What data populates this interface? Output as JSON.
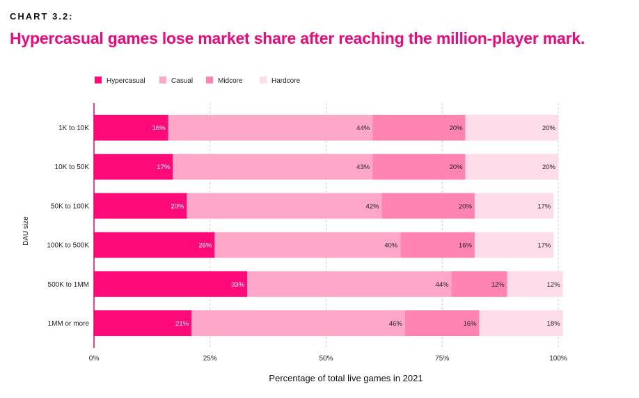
{
  "header": {
    "eyebrow": "CHART 3.2:",
    "title": "Hypercasual games lose market share after reaching the million-player mark."
  },
  "chart_data": {
    "type": "bar",
    "orientation": "horizontal",
    "stacked": true,
    "title": "Hypercasual games lose market share after reaching the million-player mark.",
    "xlabel": "Percentage of total live games in 2021",
    "ylabel": "DAU size",
    "xlim": [
      0,
      100
    ],
    "x_ticks": [
      "0%",
      "25%",
      "50%",
      "75%",
      "100%"
    ],
    "legend_position": "top-left",
    "categories": [
      "1K to 10K",
      "10K to 50K",
      "50K to 100K",
      "100K to 500K",
      "500K to 1MM",
      "1MM or more"
    ],
    "series": [
      {
        "name": "Hypercasual",
        "color": "#ff0a78",
        "label_color": "#ffffff",
        "values": [
          16,
          17,
          20,
          26,
          33,
          21
        ],
        "labels": [
          "16%",
          "17%",
          "20%",
          "26%",
          "33%",
          "21%"
        ]
      },
      {
        "name": "Casual",
        "color": "#ffa7c9",
        "label_color": "#222222",
        "values": [
          44,
          43,
          42,
          40,
          44,
          46
        ],
        "labels": [
          "44%",
          "43%",
          "42%",
          "40%",
          "44%",
          "46%"
        ]
      },
      {
        "name": "Midcore",
        "color": "#ff84b1",
        "label_color": "#222222",
        "values": [
          20,
          20,
          20,
          16,
          12,
          16
        ],
        "labels": [
          "20%",
          "20%",
          "20%",
          "16%",
          "12%",
          "16%"
        ]
      },
      {
        "name": "Hardcore",
        "color": "#ffdce9",
        "label_color": "#222222",
        "values": [
          20,
          20,
          17,
          17,
          12,
          18
        ],
        "labels": [
          "20%",
          "20%",
          "17%",
          "17%",
          "12%",
          "18%"
        ]
      }
    ],
    "gridlines": true,
    "axis_color": "#e8006f",
    "gridline_color": "#cccccc"
  }
}
